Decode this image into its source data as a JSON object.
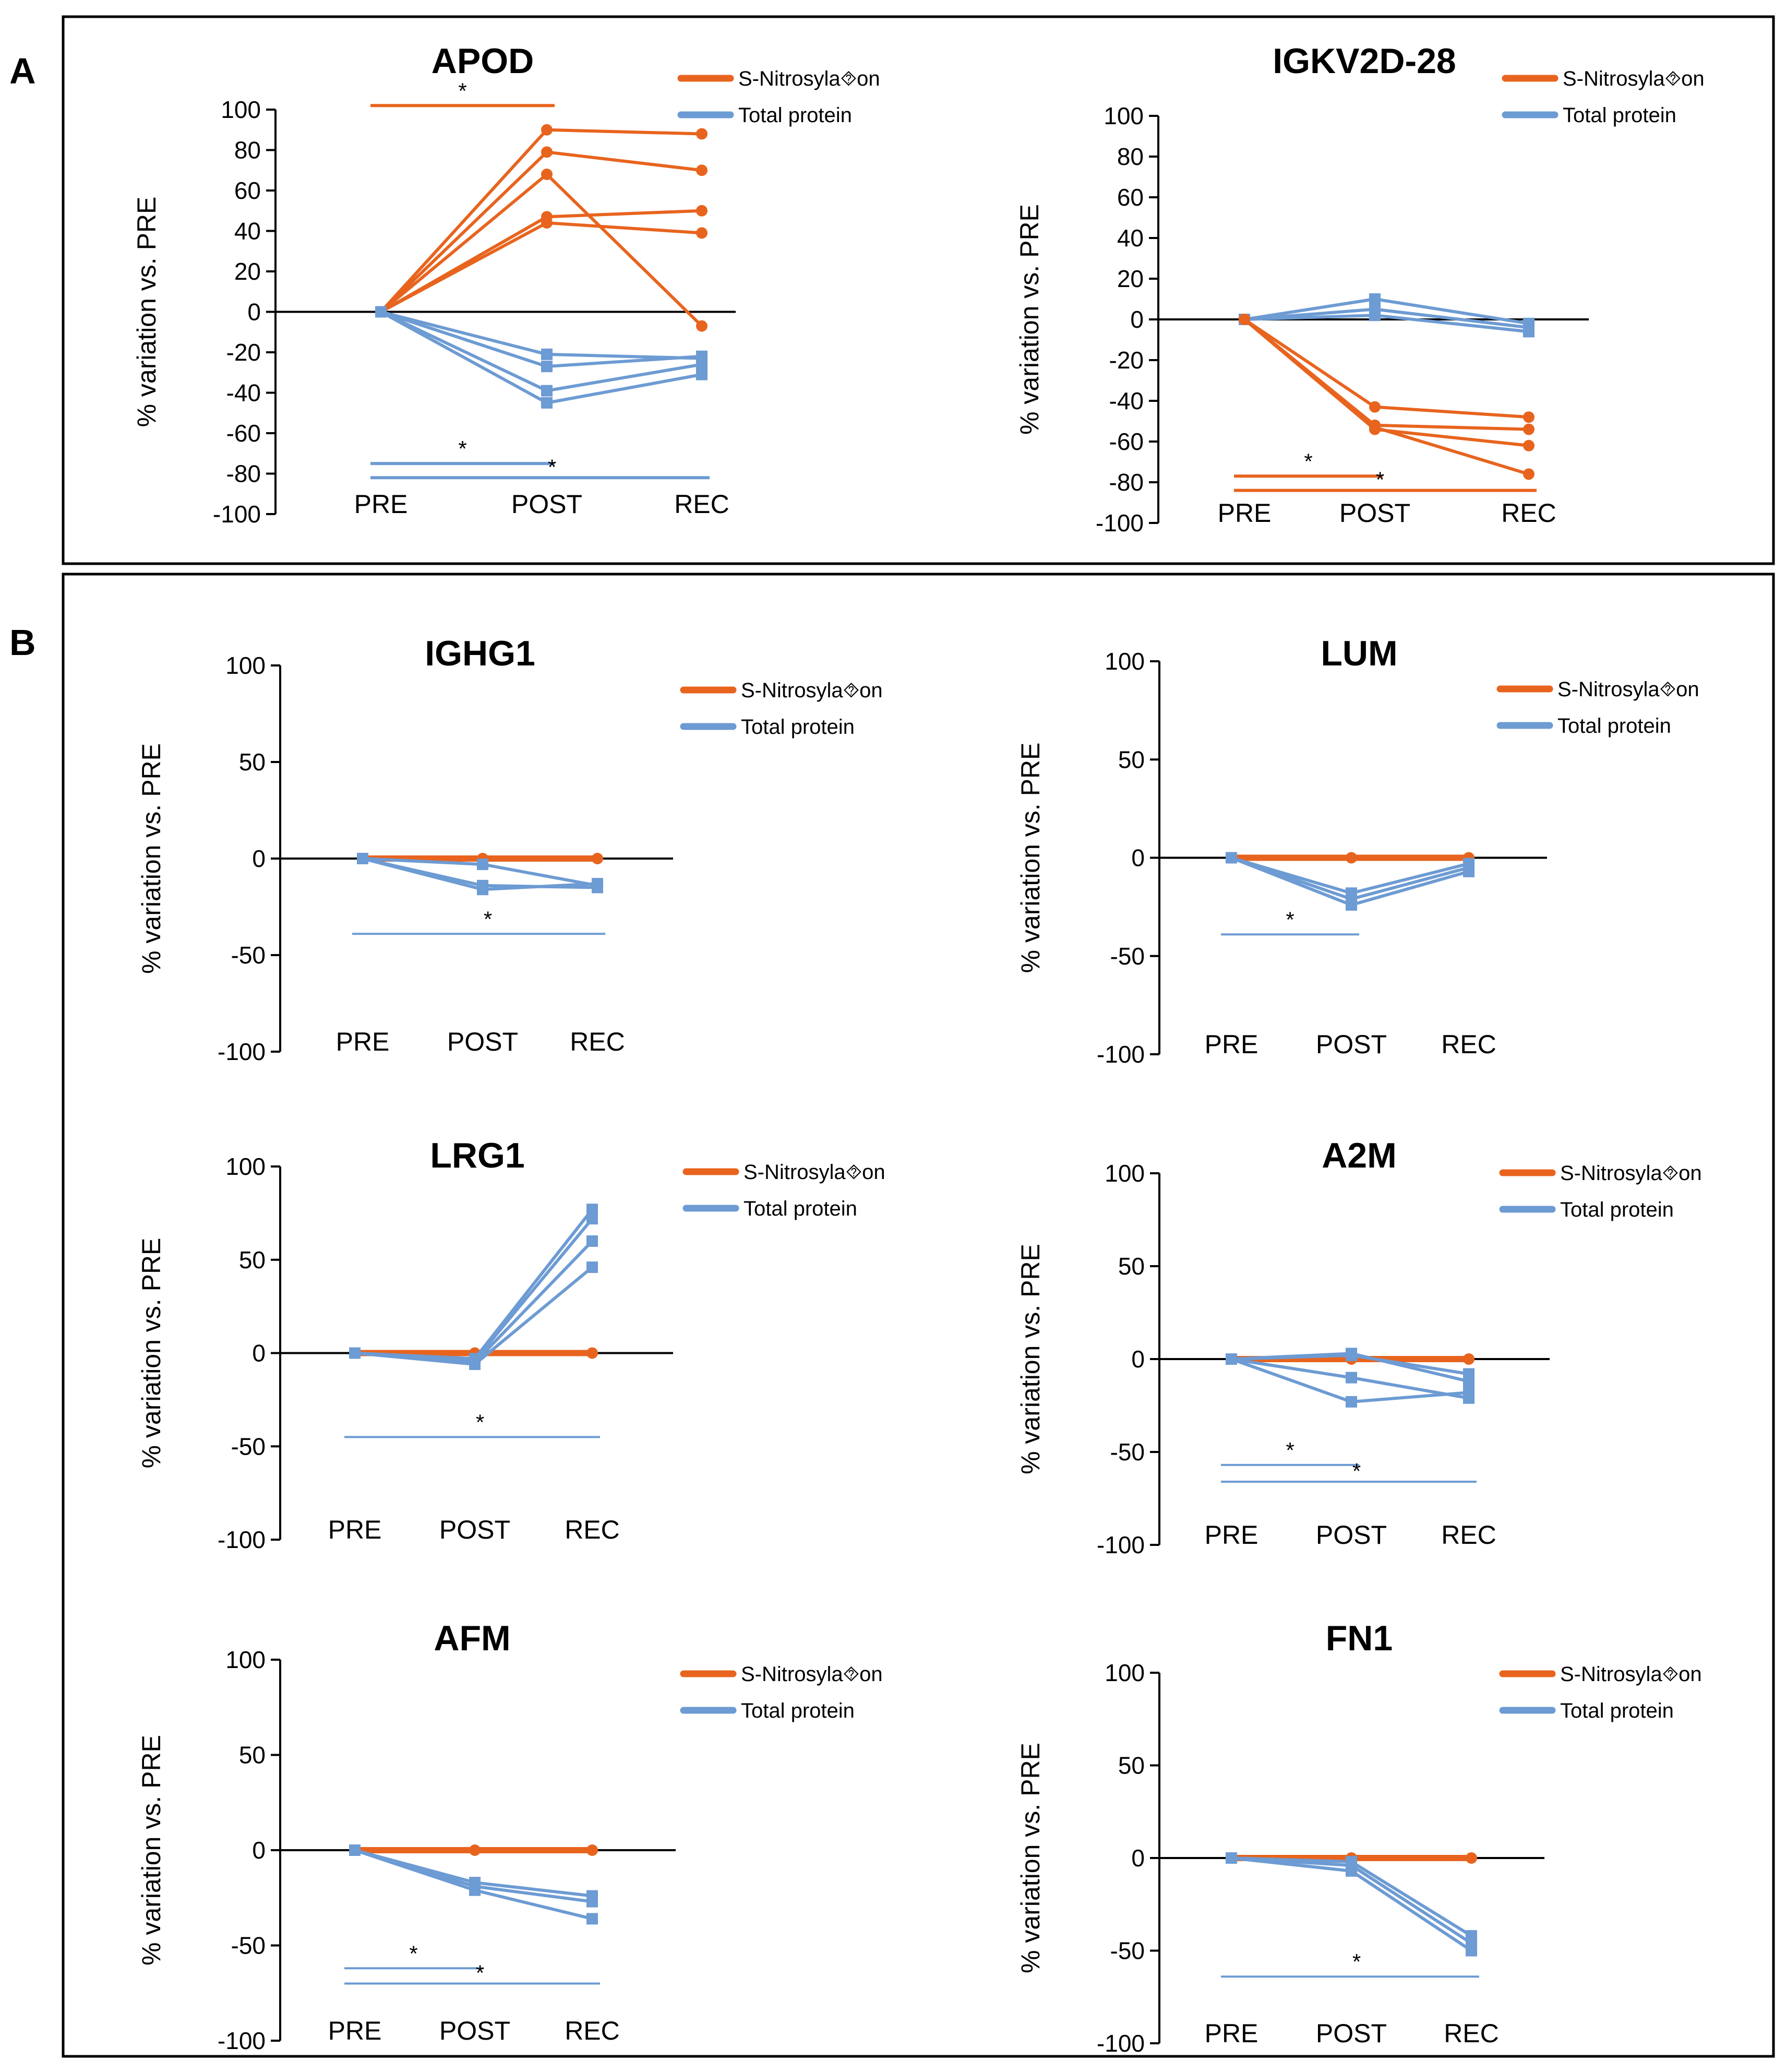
{
  "panels": [
    {
      "letter": "A"
    },
    {
      "letter": "B"
    }
  ],
  "chart_data": [
    {
      "type": "line",
      "panel": "A",
      "title": "APOD",
      "ylabel": "% variation vs. PRE",
      "ylim": [
        -100,
        100
      ],
      "yticks": [
        100,
        80,
        60,
        40,
        20,
        0,
        -20,
        -40,
        -60,
        -80,
        -100
      ],
      "categories": [
        "PRE",
        "POST",
        "REC"
      ],
      "legend": [
        "S-Nitrosyla⯑on",
        "Total protein"
      ],
      "colors": {
        "snitro": "#E8641E",
        "total": "#6D9BD3"
      },
      "series": [
        {
          "name": "S-Nitrosyla⯑on",
          "kind": "snitro",
          "values": [
            0,
            90,
            88
          ]
        },
        {
          "name": "S-Nitrosyla⯑on",
          "kind": "snitro",
          "values": [
            0,
            79,
            70
          ]
        },
        {
          "name": "S-Nitrosyla⯑on",
          "kind": "snitro",
          "values": [
            0,
            68,
            -7
          ]
        },
        {
          "name": "S-Nitrosyla⯑on",
          "kind": "snitro",
          "values": [
            0,
            47,
            50
          ]
        },
        {
          "name": "S-Nitrosyla⯑on",
          "kind": "snitro",
          "values": [
            0,
            44,
            39
          ]
        },
        {
          "name": "Total protein",
          "kind": "total",
          "values": [
            0,
            -21,
            -23
          ]
        },
        {
          "name": "Total protein",
          "kind": "total",
          "values": [
            0,
            -27,
            -22
          ]
        },
        {
          "name": "Total protein",
          "kind": "total",
          "values": [
            0,
            -39,
            -26
          ]
        },
        {
          "name": "Total protein",
          "kind": "total",
          "values": [
            0,
            -45,
            -31
          ]
        }
      ],
      "significance": [
        {
          "from": "PRE",
          "to": "POST",
          "y": 102,
          "kind": "snitro",
          "label": "*"
        },
        {
          "from": "PRE",
          "to": "POST",
          "y": -75,
          "kind": "total",
          "label": "*"
        },
        {
          "from": "PRE",
          "to": "REC",
          "y": -82,
          "kind": "total",
          "label": "*"
        }
      ]
    },
    {
      "type": "line",
      "panel": "A",
      "title": "IGKV2D-28",
      "ylabel": "% variation vs. PRE",
      "ylim": [
        -100,
        100
      ],
      "yticks": [
        100,
        80,
        60,
        40,
        20,
        0,
        -20,
        -40,
        -60,
        -80,
        -100
      ],
      "categories": [
        "PRE",
        "POST",
        "REC"
      ],
      "legend": [
        "S-Nitrosyla⯑on",
        "Total protein"
      ],
      "colors": {
        "snitro": "#E8641E",
        "total": "#6D9BD3"
      },
      "series": [
        {
          "name": "Total protein",
          "kind": "total",
          "values": [
            0,
            10,
            -2
          ]
        },
        {
          "name": "Total protein",
          "kind": "total",
          "values": [
            0,
            5,
            -4
          ]
        },
        {
          "name": "Total protein",
          "kind": "total",
          "values": [
            0,
            2,
            -6
          ]
        },
        {
          "name": "S-Nitrosyla⯑on",
          "kind": "snitro",
          "values": [
            0,
            -43,
            -48
          ]
        },
        {
          "name": "S-Nitrosyla⯑on",
          "kind": "snitro",
          "values": [
            0,
            -52,
            -54
          ]
        },
        {
          "name": "S-Nitrosyla⯑on",
          "kind": "snitro",
          "values": [
            0,
            -54,
            -62
          ]
        },
        {
          "name": "S-Nitrosyla⯑on",
          "kind": "snitro",
          "values": [
            0,
            -53,
            -76
          ]
        }
      ],
      "significance": [
        {
          "from": "PRE",
          "to": "POST",
          "y": -77,
          "kind": "snitro",
          "label": "*"
        },
        {
          "from": "PRE",
          "to": "REC",
          "y": -84,
          "kind": "snitro",
          "label": "*"
        }
      ]
    },
    {
      "type": "line",
      "panel": "B",
      "title": "IGHG1",
      "ylabel": "% variation vs. PRE",
      "ylim": [
        -100,
        100
      ],
      "yticks": [
        100,
        50,
        0,
        -50,
        -100
      ],
      "categories": [
        "PRE",
        "POST",
        "REC"
      ],
      "legend": [
        "S-Nitrosyla⯑on",
        "Total protein"
      ],
      "colors": {
        "snitro": "#E8641E",
        "total": "#6D9BD3"
      },
      "series": [
        {
          "name": "S-Nitrosyla⯑on",
          "kind": "snitro",
          "values": [
            0,
            0,
            0
          ]
        },
        {
          "name": "Total protein",
          "kind": "total",
          "values": [
            0,
            -3,
            -14
          ]
        },
        {
          "name": "Total protein",
          "kind": "total",
          "values": [
            0,
            -14,
            -15
          ]
        },
        {
          "name": "Total protein",
          "kind": "total",
          "values": [
            0,
            -16,
            -13
          ]
        }
      ],
      "significance": [
        {
          "from": "PRE",
          "to": "REC",
          "y": -39,
          "kind": "total",
          "label": "*"
        }
      ]
    },
    {
      "type": "line",
      "panel": "B",
      "title": "LUM",
      "ylabel": "% variation vs. PRE",
      "ylim": [
        -100,
        100
      ],
      "yticks": [
        100,
        50,
        0,
        -50,
        -100
      ],
      "categories": [
        "PRE",
        "POST",
        "REC"
      ],
      "legend": [
        "S-Nitrosyla⯑on",
        "Total protein"
      ],
      "colors": {
        "snitro": "#E8641E",
        "total": "#6D9BD3"
      },
      "series": [
        {
          "name": "S-Nitrosyla⯑on",
          "kind": "snitro",
          "values": [
            0,
            0,
            0
          ]
        },
        {
          "name": "Total protein",
          "kind": "total",
          "values": [
            0,
            -18,
            -3
          ]
        },
        {
          "name": "Total protein",
          "kind": "total",
          "values": [
            0,
            -21,
            -5
          ]
        },
        {
          "name": "Total protein",
          "kind": "total",
          "values": [
            0,
            -24,
            -7
          ]
        }
      ],
      "significance": [
        {
          "from": "PRE",
          "to": "POST",
          "y": -39,
          "kind": "total",
          "label": "*"
        }
      ]
    },
    {
      "type": "line",
      "panel": "B",
      "title": "LRG1",
      "ylabel": "% variation vs. PRE",
      "ylim": [
        -100,
        100
      ],
      "yticks": [
        100,
        50,
        0,
        -50,
        -100
      ],
      "categories": [
        "PRE",
        "POST",
        "REC"
      ],
      "legend": [
        "S-Nitrosyla⯑on",
        "Total protein"
      ],
      "colors": {
        "snitro": "#E8641E",
        "total": "#6D9BD3"
      },
      "series": [
        {
          "name": "S-Nitrosyla⯑on",
          "kind": "snitro",
          "values": [
            0,
            0,
            0
          ]
        },
        {
          "name": "Total protein",
          "kind": "total",
          "values": [
            0,
            -3,
            77
          ]
        },
        {
          "name": "Total protein",
          "kind": "total",
          "values": [
            0,
            -4,
            72
          ]
        },
        {
          "name": "Total protein",
          "kind": "total",
          "values": [
            0,
            -5,
            60
          ]
        },
        {
          "name": "Total protein",
          "kind": "total",
          "values": [
            0,
            -6,
            46
          ]
        }
      ],
      "significance": [
        {
          "from": "PRE",
          "to": "REC",
          "y": -45,
          "kind": "total",
          "label": "*"
        }
      ]
    },
    {
      "type": "line",
      "panel": "B",
      "title": "A2M",
      "ylabel": "% variation vs. PRE",
      "ylim": [
        -100,
        100
      ],
      "yticks": [
        100,
        50,
        0,
        -50,
        -100
      ],
      "categories": [
        "PRE",
        "POST",
        "REC"
      ],
      "legend": [
        "S-Nitrosyla⯑on",
        "Total protein"
      ],
      "colors": {
        "snitro": "#E8641E",
        "total": "#6D9BD3"
      },
      "series": [
        {
          "name": "S-Nitrosyla⯑on",
          "kind": "snitro",
          "values": [
            0,
            0,
            0
          ]
        },
        {
          "name": "Total protein",
          "kind": "total",
          "values": [
            0,
            3,
            -12
          ]
        },
        {
          "name": "Total protein",
          "kind": "total",
          "values": [
            0,
            -10,
            -21
          ]
        },
        {
          "name": "Total protein",
          "kind": "total",
          "values": [
            0,
            -23,
            -18
          ]
        },
        {
          "name": "Total protein",
          "kind": "total",
          "values": [
            0,
            2,
            -8
          ]
        }
      ],
      "significance": [
        {
          "from": "PRE",
          "to": "POST",
          "y": -57,
          "kind": "total",
          "label": "*"
        },
        {
          "from": "PRE",
          "to": "REC",
          "y": -66,
          "kind": "total",
          "label": "*"
        }
      ]
    },
    {
      "type": "line",
      "panel": "B",
      "title": "AFM",
      "ylabel": "% variation vs. PRE",
      "ylim": [
        -100,
        100
      ],
      "yticks": [
        100,
        50,
        0,
        -50,
        -100
      ],
      "categories": [
        "PRE",
        "POST",
        "REC"
      ],
      "legend": [
        "S-Nitrosyla⯑on",
        "Total protein"
      ],
      "colors": {
        "snitro": "#E8641E",
        "total": "#6D9BD3"
      },
      "series": [
        {
          "name": "S-Nitrosyla⯑on",
          "kind": "snitro",
          "values": [
            0,
            0,
            0
          ]
        },
        {
          "name": "Total protein",
          "kind": "total",
          "values": [
            0,
            -17,
            -24
          ]
        },
        {
          "name": "Total protein",
          "kind": "total",
          "values": [
            0,
            -19,
            -27
          ]
        },
        {
          "name": "Total protein",
          "kind": "total",
          "values": [
            0,
            -21,
            -36
          ]
        }
      ],
      "significance": [
        {
          "from": "PRE",
          "to": "POST",
          "y": -62,
          "kind": "total",
          "label": "*"
        },
        {
          "from": "PRE",
          "to": "REC",
          "y": -70,
          "kind": "total",
          "label": "*"
        }
      ]
    },
    {
      "type": "line",
      "panel": "B",
      "title": "FN1",
      "ylabel": "% variation vs. PRE",
      "ylim": [
        -100,
        100
      ],
      "yticks": [
        100,
        50,
        0,
        -50,
        -100
      ],
      "categories": [
        "PRE",
        "POST",
        "REC"
      ],
      "legend": [
        "S-Nitrosyla⯑on",
        "Total protein"
      ],
      "colors": {
        "snitro": "#E8641E",
        "total": "#6D9BD3"
      },
      "series": [
        {
          "name": "S-Nitrosyla⯑on",
          "kind": "snitro",
          "values": [
            0,
            0,
            0
          ]
        },
        {
          "name": "Total protein",
          "kind": "total",
          "values": [
            0,
            -2,
            -42
          ]
        },
        {
          "name": "Total protein",
          "kind": "total",
          "values": [
            0,
            -4,
            -46
          ]
        },
        {
          "name": "Total protein",
          "kind": "total",
          "values": [
            0,
            -7,
            -50
          ]
        }
      ],
      "significance": [
        {
          "from": "PRE",
          "to": "REC",
          "y": -64,
          "kind": "total",
          "label": "*"
        }
      ]
    }
  ]
}
